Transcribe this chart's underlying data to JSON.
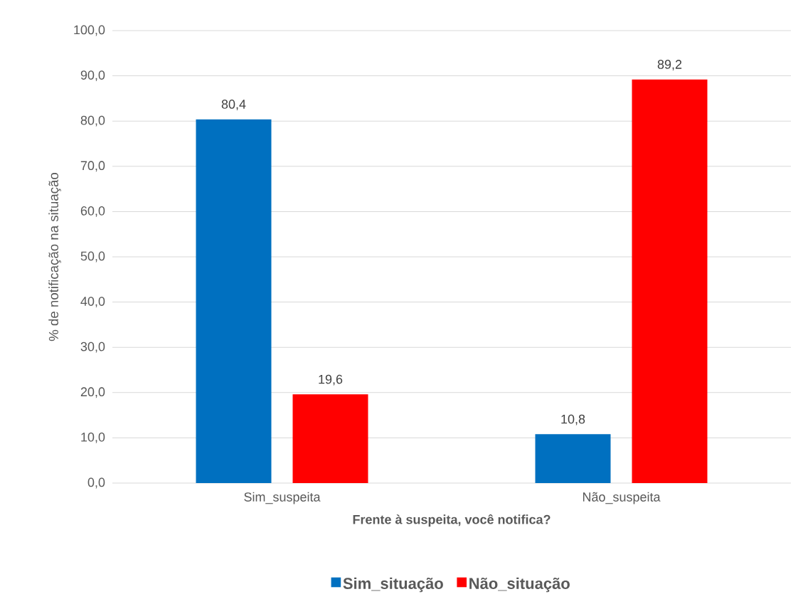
{
  "chart_data": {
    "type": "bar",
    "xlabel": "Frente à suspeita, você notifica?",
    "ylabel": "% de notificação na situação",
    "categories": [
      "Sim_suspeita",
      "Não_suspeita"
    ],
    "series": [
      {
        "name": "Sim_situação",
        "color": "#0070c0",
        "values": [
          80.4,
          10.8
        ],
        "value_labels": [
          "80,4",
          "10,8"
        ]
      },
      {
        "name": "Não_situação",
        "color": "#ff0000",
        "values": [
          19.6,
          89.2
        ],
        "value_labels": [
          "19,6",
          "89,2"
        ]
      }
    ],
    "ylim": [
      0,
      100
    ],
    "yticks": [
      {
        "value": 0,
        "label": "0,0"
      },
      {
        "value": 10,
        "label": "10,0"
      },
      {
        "value": 20,
        "label": "20,0"
      },
      {
        "value": 30,
        "label": "30,0"
      },
      {
        "value": 40,
        "label": "40,0"
      },
      {
        "value": 50,
        "label": "50,0"
      },
      {
        "value": 60,
        "label": "60,0"
      },
      {
        "value": 70,
        "label": "70,0"
      },
      {
        "value": 80,
        "label": "80,0"
      },
      {
        "value": 90,
        "label": "90,0"
      },
      {
        "value": 100,
        "label": "100,0"
      }
    ],
    "grid": "y",
    "legend": "bottom"
  }
}
